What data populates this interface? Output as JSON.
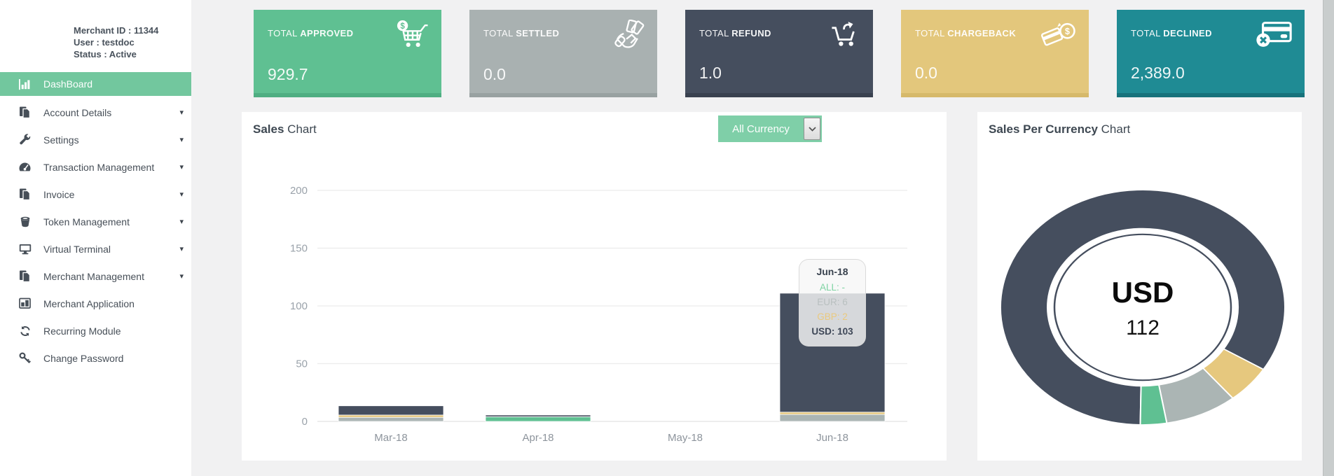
{
  "sidebar": {
    "merchant_lines": [
      "Merchant ID : 11344",
      "User : testdoc",
      "Status : Active"
    ],
    "items": [
      {
        "label": "DashBoard",
        "icon": "bar-chart",
        "active": true,
        "caret": false
      },
      {
        "label": "Account Details",
        "icon": "files",
        "active": false,
        "caret": true
      },
      {
        "label": "Settings",
        "icon": "wrench",
        "active": false,
        "caret": true
      },
      {
        "label": "Transaction Management",
        "icon": "tachometer",
        "active": false,
        "caret": true
      },
      {
        "label": "Invoice",
        "icon": "files",
        "active": false,
        "caret": true
      },
      {
        "label": "Token Management",
        "icon": "bucket",
        "active": false,
        "caret": true
      },
      {
        "label": "Virtual Terminal",
        "icon": "monitor",
        "active": false,
        "caret": true
      },
      {
        "label": "Merchant Management",
        "icon": "files",
        "active": false,
        "caret": true
      },
      {
        "label": "Merchant Application",
        "icon": "columns",
        "active": false,
        "caret": false
      },
      {
        "label": "Recurring Module",
        "icon": "refresh",
        "active": false,
        "caret": false
      },
      {
        "label": "Change Password",
        "icon": "key",
        "active": false,
        "caret": false
      }
    ]
  },
  "cards": [
    {
      "prefix": "TOTAL ",
      "label": "APPROVED",
      "value": "929.7",
      "icon": "cart-dollar",
      "bg": "#5fc092",
      "border": "#4fae82"
    },
    {
      "prefix": "TOTAL ",
      "label": "SETTLED",
      "value": "0.0",
      "icon": "hand-cash",
      "bg": "#a9b1b1",
      "border": "#98a1a1"
    },
    {
      "prefix": "TOTAL ",
      "label": "REFUND",
      "value": "1.0",
      "icon": "cart-arrow",
      "bg": "#454e5e",
      "border": "#39414f"
    },
    {
      "prefix": "TOTAL ",
      "label": "CHARGEBACK",
      "value": "0.0",
      "icon": "card-refresh",
      "bg": "#e3c77c",
      "border": "#d6b96a"
    },
    {
      "prefix": "TOTAL ",
      "label": "DECLINED",
      "value": "2,389.0",
      "icon": "card-x",
      "bg": "#1f8b94",
      "border": "#17727b"
    }
  ],
  "sales_panel": {
    "title_bold": "Sales",
    "title_rest": " Chart",
    "currency_select": {
      "value": "All Currency"
    }
  },
  "donut_panel": {
    "title_bold": "Sales Per Currency",
    "title_rest": " Chart"
  },
  "chart_data": [
    {
      "type": "bar",
      "stacked": true,
      "title": "Sales Chart",
      "categories": [
        "Mar-18",
        "Apr-18",
        "May-18",
        "Jun-18"
      ],
      "series": [
        {
          "name": "ALL",
          "color": "#5fc092",
          "values": [
            0,
            4,
            0,
            0
          ]
        },
        {
          "name": "EUR",
          "color": "#abb5b4",
          "values": [
            3.5,
            0,
            0,
            6
          ]
        },
        {
          "name": "GBP",
          "color": "#e6c87e",
          "values": [
            2,
            0,
            0,
            2
          ]
        },
        {
          "name": "USD",
          "color": "#454e5e",
          "values": [
            8,
            1.5,
            0,
            103
          ]
        }
      ],
      "ylim": [
        0,
        200
      ],
      "yticks": [
        0,
        50,
        100,
        150,
        200
      ],
      "grid": true,
      "legend": "none",
      "tooltip": {
        "category": "Jun-18",
        "rows": [
          {
            "label": "ALL",
            "value": "-",
            "color": "#7ed3a2",
            "bold": false
          },
          {
            "label": "EUR",
            "value": "6",
            "color": "#b9c0c0",
            "bold": false
          },
          {
            "label": "GBP",
            "value": "2",
            "color": "#eac97e",
            "bold": false
          },
          {
            "label": "USD",
            "value": "103",
            "color": "#3e4757",
            "bold": true
          }
        ]
      }
    },
    {
      "type": "pie",
      "title": "Sales Per Currency Chart",
      "donut": true,
      "start_angle": 181,
      "slices": [
        {
          "label": "USD",
          "value": 112,
          "color": "#454e5e"
        },
        {
          "label": "GBP",
          "value": 7,
          "color": "#e6c87e"
        },
        {
          "label": "EUR",
          "value": 11,
          "color": "#abb5b4"
        },
        {
          "label": "ALL",
          "value": 4,
          "color": "#5fc092"
        }
      ],
      "center_label": "USD",
      "center_value": "112"
    }
  ]
}
